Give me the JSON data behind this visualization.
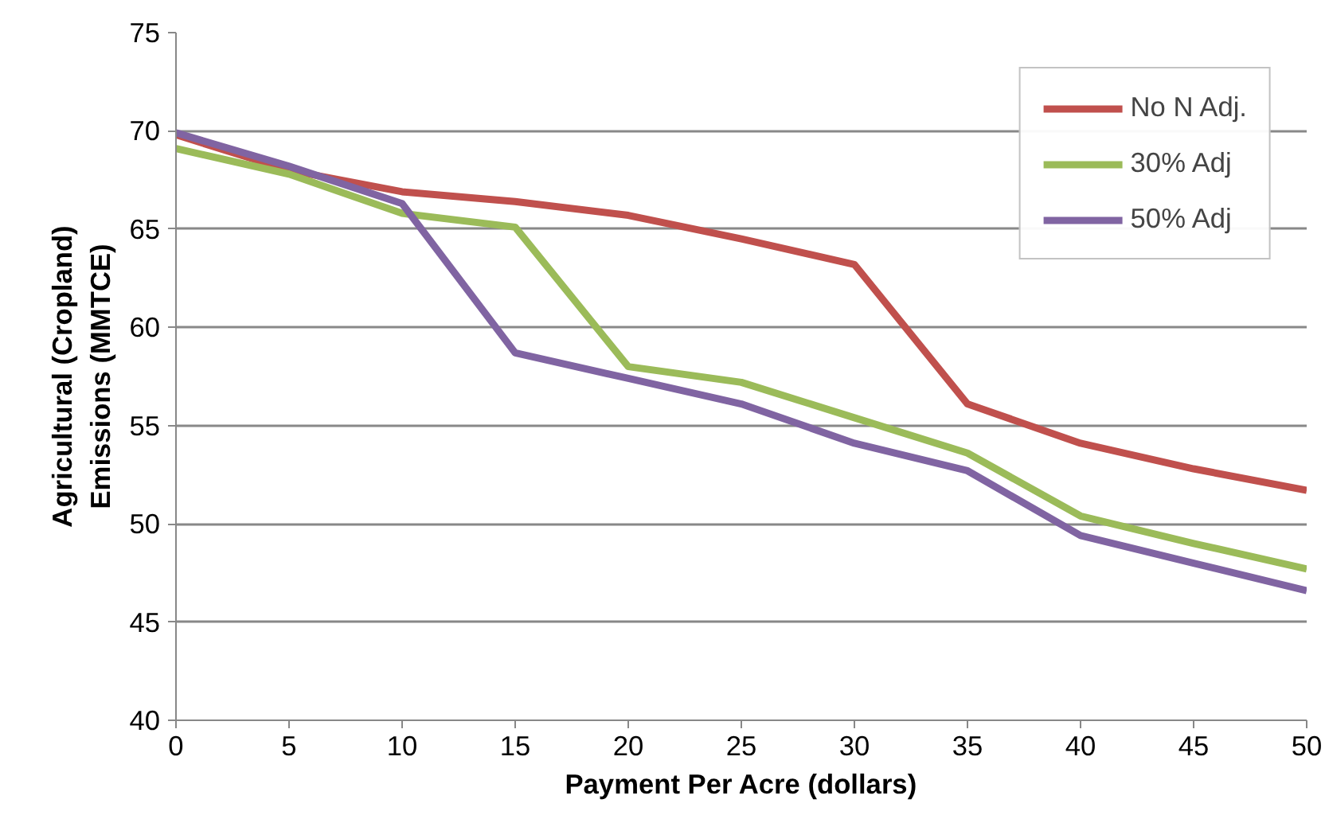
{
  "chart_data": {
    "type": "line",
    "xlabel": "Payment Per Acre (dollars)",
    "ylabel": "Agricultural (Cropland)\nEmissions (MMTCE)",
    "x": [
      0,
      5,
      10,
      15,
      20,
      25,
      30,
      35,
      40,
      45,
      50
    ],
    "series": [
      {
        "name": "No N Adj.",
        "color": "#c0504d",
        "values": [
          69.8,
          68.0,
          66.9,
          66.4,
          65.7,
          64.5,
          63.2,
          56.1,
          54.1,
          52.8,
          51.7
        ]
      },
      {
        "name": "30% Adj",
        "color": "#9bbb59",
        "values": [
          69.1,
          67.8,
          65.8,
          65.1,
          58.0,
          57.2,
          55.4,
          53.6,
          50.4,
          49.0,
          47.7
        ]
      },
      {
        "name": "50% Adj",
        "color": "#8064a2",
        "values": [
          69.9,
          68.2,
          66.3,
          58.7,
          57.4,
          56.1,
          54.1,
          52.7,
          49.4,
          48.0,
          46.6
        ]
      }
    ],
    "xlim": [
      0,
      50
    ],
    "xticks": [
      0,
      5,
      10,
      15,
      20,
      25,
      30,
      35,
      40,
      45,
      50
    ],
    "ylim": [
      40,
      75
    ],
    "yticks": [
      40,
      45,
      50,
      55,
      60,
      65,
      70,
      75
    ],
    "grid": "y",
    "legend": "top right",
    "marker": "none",
    "line_style": "solid"
  }
}
